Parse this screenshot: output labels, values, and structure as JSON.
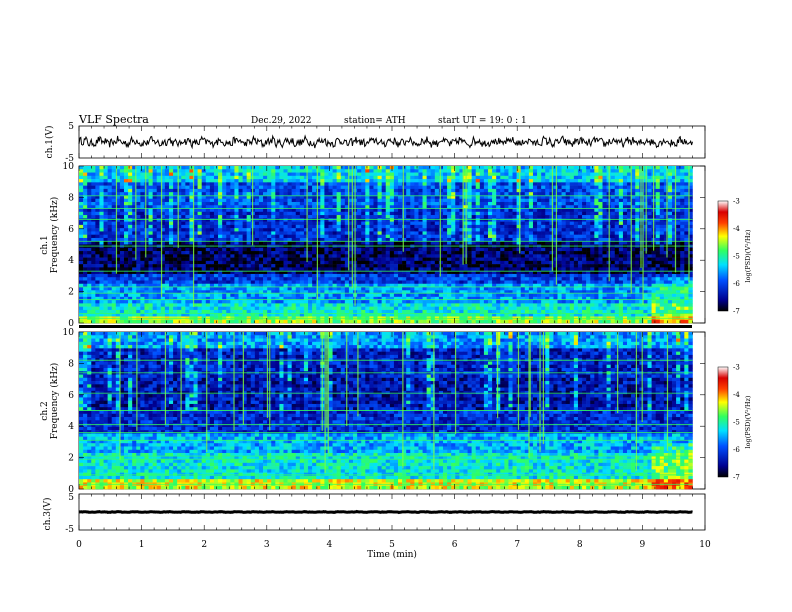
{
  "header": {
    "title": "VLF  Spectra",
    "date": "Dec.29, 2022",
    "station": "station= ATH",
    "start": "start  UT  =    19: 0   : 1"
  },
  "chart_data": [
    {
      "type": "line",
      "panel": "ch1-waveform",
      "ylabel": "ch.1(V)",
      "ylim": [
        -5,
        5
      ],
      "yticks": [
        "5",
        "-5"
      ],
      "xlim": [
        0,
        10
      ],
      "approx_level": 0,
      "approx_range": [
        -1.2,
        1.2
      ],
      "color": "#000000"
    },
    {
      "type": "heatmap",
      "panel": "ch1-spectrogram",
      "ylabel": [
        "ch.1",
        "Frequency  (kHz)"
      ],
      "xlim": [
        0,
        9.8
      ],
      "ylim": [
        0,
        10
      ],
      "yticks": [
        "0",
        "2",
        "4",
        "6",
        "8",
        "10"
      ],
      "colorbar": {
        "label": "log(PSD)(V²/Hz)",
        "ticks": [
          "-3",
          "-4",
          "-5",
          "-6",
          "-7"
        ],
        "range": [
          -7,
          -3
        ]
      },
      "bands": [
        {
          "from": 0.0,
          "to": 0.4,
          "level": -4.6
        },
        {
          "from": 0.4,
          "to": 1.2,
          "level": -5.2
        },
        {
          "from": 1.2,
          "to": 2.4,
          "level": -5.6
        },
        {
          "from": 2.4,
          "to": 3.2,
          "level": -6.1
        },
        {
          "from": 3.2,
          "to": 5.2,
          "level": -6.7
        },
        {
          "from": 5.2,
          "to": 7.2,
          "level": -6.2
        },
        {
          "from": 7.2,
          "to": 9.0,
          "level": -6.0
        },
        {
          "from": 9.0,
          "to": 10.0,
          "level": -5.4
        }
      ],
      "lines_khz": [
        0.3,
        0.6,
        1.5,
        1.9,
        2.3,
        3.3,
        4.9,
        5.2,
        6.6,
        7.3,
        8.1
      ]
    },
    {
      "type": "heatmap",
      "panel": "ch2-spectrogram",
      "ylabel": [
        "ch.2",
        "Frequency  (kHz)"
      ],
      "xlim": [
        0,
        9.8
      ],
      "ylim": [
        0,
        10
      ],
      "yticks": [
        "0",
        "2",
        "4",
        "6",
        "8",
        "10"
      ],
      "colorbar": {
        "label": "log(PSD)(V²/Hz)",
        "ticks": [
          "-3",
          "-4",
          "-5",
          "-6",
          "-7"
        ],
        "range": [
          -7,
          -3
        ]
      },
      "bands": [
        {
          "from": 0.0,
          "to": 0.6,
          "level": -4.4
        },
        {
          "from": 0.6,
          "to": 2.2,
          "level": -5.2
        },
        {
          "from": 2.2,
          "to": 3.6,
          "level": -5.5
        },
        {
          "from": 3.6,
          "to": 5.0,
          "level": -6.2
        },
        {
          "from": 5.0,
          "to": 7.0,
          "level": -6.4
        },
        {
          "from": 7.0,
          "to": 9.0,
          "level": -6.3
        },
        {
          "from": 9.0,
          "to": 10.0,
          "level": -5.6
        }
      ],
      "lines_khz": [
        0.3,
        0.9,
        1.9,
        2.1,
        3.1,
        3.6,
        4.1,
        5.0,
        6.1,
        7.4,
        8.2
      ]
    },
    {
      "type": "line",
      "panel": "ch3-waveform",
      "ylabel": "ch.3(V)",
      "ylim": [
        -5,
        5
      ],
      "yticks": [
        "5",
        "-5"
      ],
      "xlim": [
        0,
        10
      ],
      "approx_level": 0,
      "approx_range": [
        -0.3,
        0.3
      ],
      "xlabel": "Time  (min)",
      "xticks": [
        "0",
        "1",
        "2",
        "3",
        "4",
        "5",
        "6",
        "7",
        "8",
        "9",
        "10"
      ],
      "color": "#000000"
    }
  ]
}
